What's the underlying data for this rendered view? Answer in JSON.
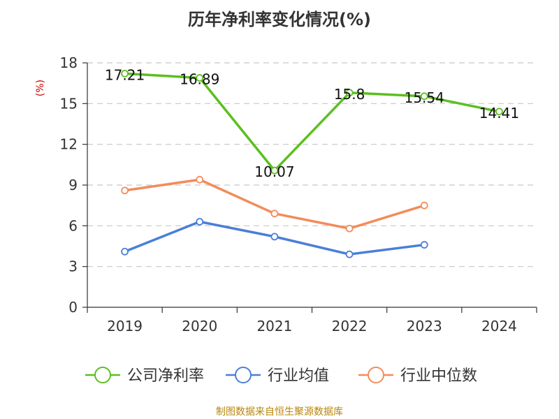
{
  "chart_data": {
    "type": "line",
    "title": "历年净利率变化情况(%)",
    "ylabel": "(%)",
    "xlabel": "",
    "categories": [
      "2019",
      "2020",
      "2021",
      "2022",
      "2023",
      "2024"
    ],
    "ylim": [
      0,
      18
    ],
    "yticks": [
      0,
      3,
      6,
      9,
      12,
      15,
      18
    ],
    "grid": true,
    "legend_position": "bottom",
    "series": [
      {
        "name": "公司净利率",
        "color": "#5cbf1f",
        "values": [
          17.21,
          16.89,
          10.07,
          15.8,
          15.54,
          14.41
        ],
        "labels": [
          "17.21",
          "16.89",
          "10.07",
          "15.8",
          "15.54",
          "14.41"
        ]
      },
      {
        "name": "行业均值",
        "color": "#4a7fd9",
        "values": [
          4.1,
          6.3,
          5.2,
          3.9,
          4.6,
          null
        ]
      },
      {
        "name": "行业中位数",
        "color": "#f28c5a",
        "values": [
          8.6,
          9.4,
          6.9,
          5.8,
          7.5,
          null
        ]
      }
    ]
  },
  "footer": {
    "source": "制图数据来自恒生聚源数据库"
  }
}
